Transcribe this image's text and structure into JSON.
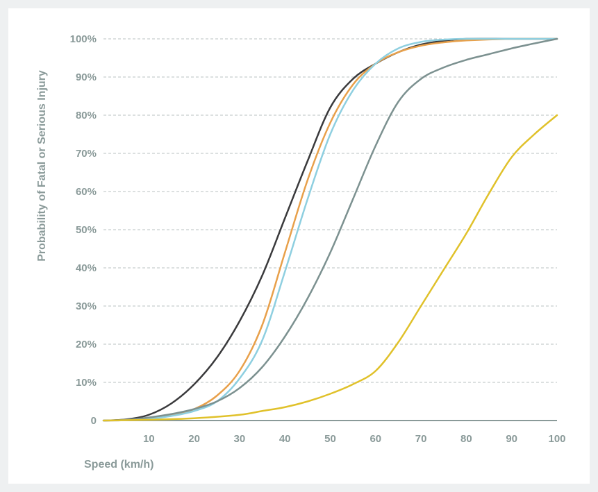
{
  "chart_data": {
    "type": "line",
    "xlabel": "Speed (km/h)",
    "ylabel": "Probability of Fatal or Serious Injury",
    "xlim": [
      0,
      100
    ],
    "ylim": [
      0,
      100
    ],
    "x_ticks": [
      10,
      20,
      30,
      40,
      50,
      60,
      70,
      80,
      90,
      100
    ],
    "x_tick_labels": [
      "10",
      "20",
      "30",
      "40",
      "50",
      "60",
      "70",
      "80",
      "90",
      "100"
    ],
    "y_ticks": [
      0,
      10,
      20,
      30,
      40,
      50,
      60,
      70,
      80,
      90,
      100
    ],
    "y_tick_labels": [
      "0",
      "10%",
      "20%",
      "30%",
      "40%",
      "50%",
      "60%",
      "70%",
      "80%",
      "90%",
      "100%"
    ],
    "grid": "horizontal-dashed",
    "series": [
      {
        "color": "#3a3a3c",
        "x": [
          0,
          5,
          10,
          15,
          20,
          25,
          30,
          35,
          40,
          45,
          50,
          55,
          60,
          65,
          70,
          75,
          80,
          90,
          100
        ],
        "y": [
          0,
          0.3,
          1.5,
          4.5,
          9.5,
          16.5,
          26,
          38,
          53,
          68,
          82,
          89.5,
          93.5,
          96.5,
          98.5,
          99.5,
          100,
          100,
          100
        ]
      },
      {
        "color": "#e8a04a",
        "x": [
          0,
          5,
          10,
          15,
          20,
          25,
          30,
          35,
          40,
          45,
          50,
          55,
          60,
          65,
          70,
          75,
          80,
          90,
          100
        ],
        "y": [
          0,
          0.1,
          0.6,
          1.5,
          3,
          6.5,
          13,
          25,
          44,
          63,
          78,
          88,
          93.5,
          96.5,
          98.2,
          99.1,
          99.6,
          100,
          100
        ]
      },
      {
        "color": "#8ecfe0",
        "x": [
          0,
          5,
          10,
          15,
          20,
          25,
          30,
          35,
          40,
          45,
          50,
          55,
          60,
          65,
          70,
          75,
          80,
          90,
          100
        ],
        "y": [
          0,
          0.1,
          0.4,
          1.2,
          2.5,
          5,
          11,
          21,
          39,
          58,
          75,
          86.5,
          93.5,
          97.5,
          99.2,
          99.8,
          100,
          100,
          100
        ]
      },
      {
        "color": "#7c9190",
        "x": [
          0,
          5,
          10,
          15,
          20,
          25,
          30,
          35,
          40,
          45,
          50,
          55,
          60,
          65,
          70,
          75,
          80,
          85,
          90,
          95,
          100
        ],
        "y": [
          0,
          0.2,
          0.8,
          1.7,
          3,
          5,
          8.5,
          14,
          22,
          32,
          44,
          58,
          72,
          83.5,
          89.5,
          92.5,
          94.5,
          96,
          97.5,
          98.8,
          100
        ]
      },
      {
        "color": "#e0c12a",
        "x": [
          0,
          10,
          20,
          30,
          35,
          40,
          45,
          50,
          55,
          60,
          65,
          70,
          75,
          80,
          85,
          90,
          95,
          100
        ],
        "y": [
          0,
          0.2,
          0.6,
          1.5,
          2.5,
          3.5,
          5,
          7,
          9.5,
          13,
          20.5,
          30,
          39.5,
          49,
          59.5,
          69,
          75,
          80
        ]
      }
    ]
  }
}
